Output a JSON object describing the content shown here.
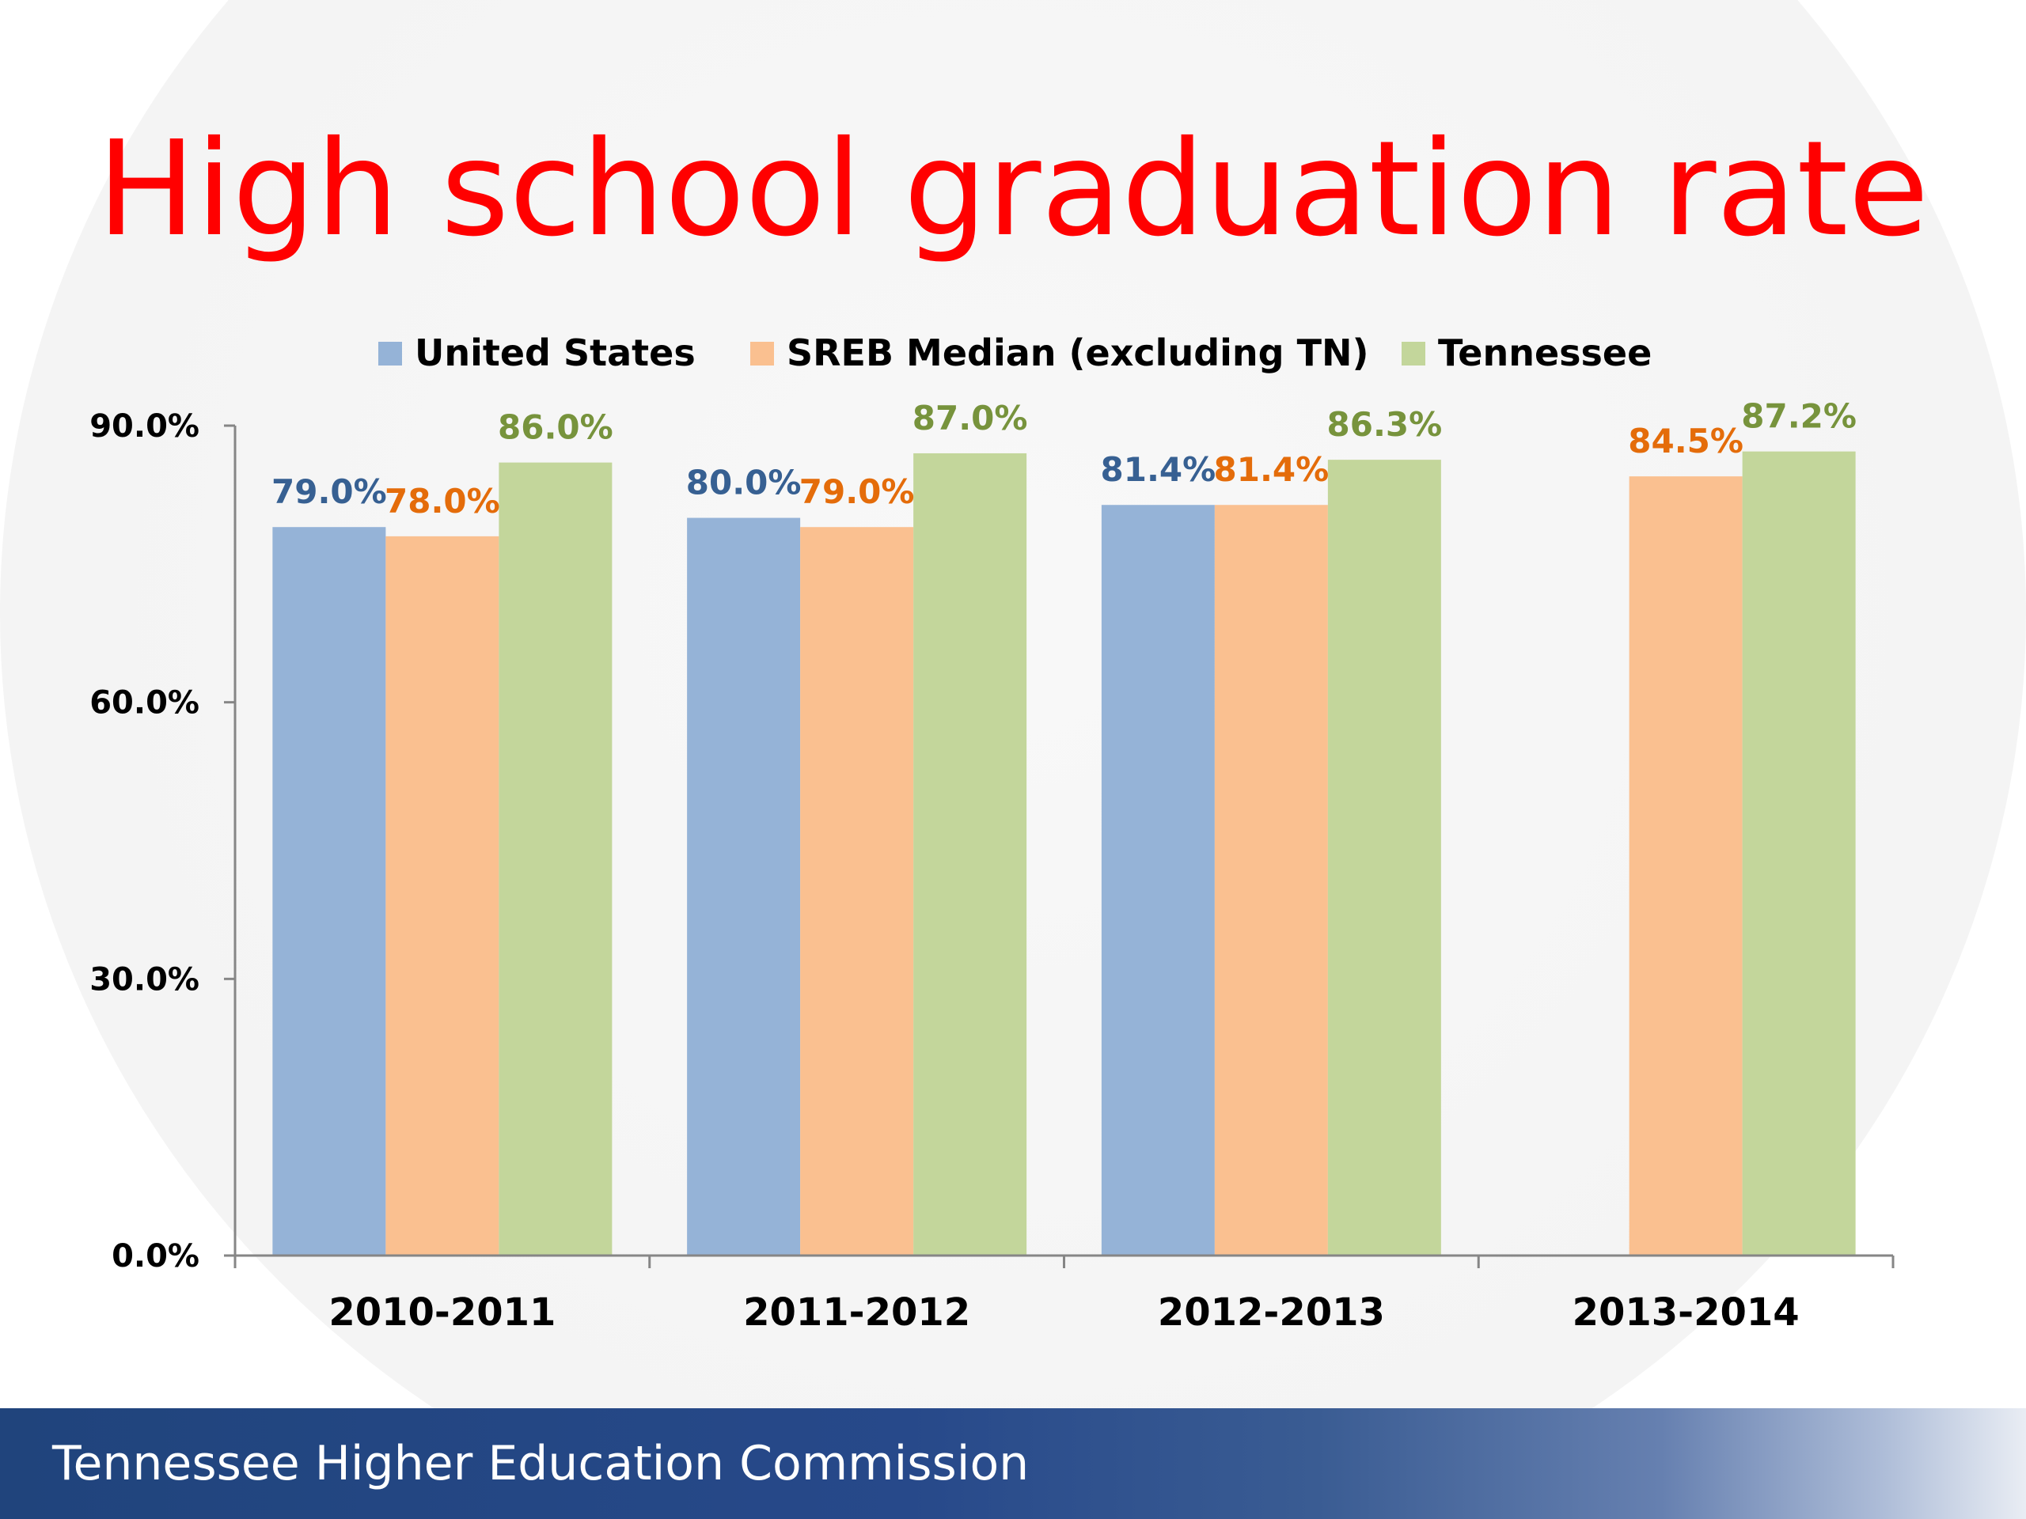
{
  "slide": {
    "title": "High school graduation rate",
    "footer": "Tennessee Higher Education Commission"
  },
  "chart_data": {
    "type": "bar",
    "categories": [
      "2010-2011",
      "2011-2012",
      "2012-2013",
      "2013-2014"
    ],
    "series": [
      {
        "name": "United States",
        "color": "#95b3d7",
        "label_color": "#376092",
        "values": [
          79.0,
          80.0,
          81.4,
          null
        ],
        "labels": [
          "79.0%",
          "80.0%",
          "81.4%",
          ""
        ]
      },
      {
        "name": "SREB Median (excluding TN)",
        "color": "#fac090",
        "label_color": "#e46c0a",
        "values": [
          78.0,
          79.0,
          81.4,
          84.5
        ],
        "labels": [
          "78.0%",
          "79.0%",
          "81.4%",
          "84.5%"
        ]
      },
      {
        "name": "Tennessee",
        "color": "#c3d69b",
        "label_color": "#77933c",
        "values": [
          86.0,
          87.0,
          86.3,
          87.2
        ],
        "labels": [
          "86.0%",
          "87.0%",
          "86.3%",
          "87.2%"
        ]
      }
    ],
    "ylim": [
      0,
      90
    ],
    "yticks": [
      0,
      30,
      60,
      90
    ],
    "ytick_labels": [
      "0.0%",
      "30.0%",
      "60.0%",
      "90.0%"
    ],
    "legend_position": "top",
    "grid": false
  }
}
